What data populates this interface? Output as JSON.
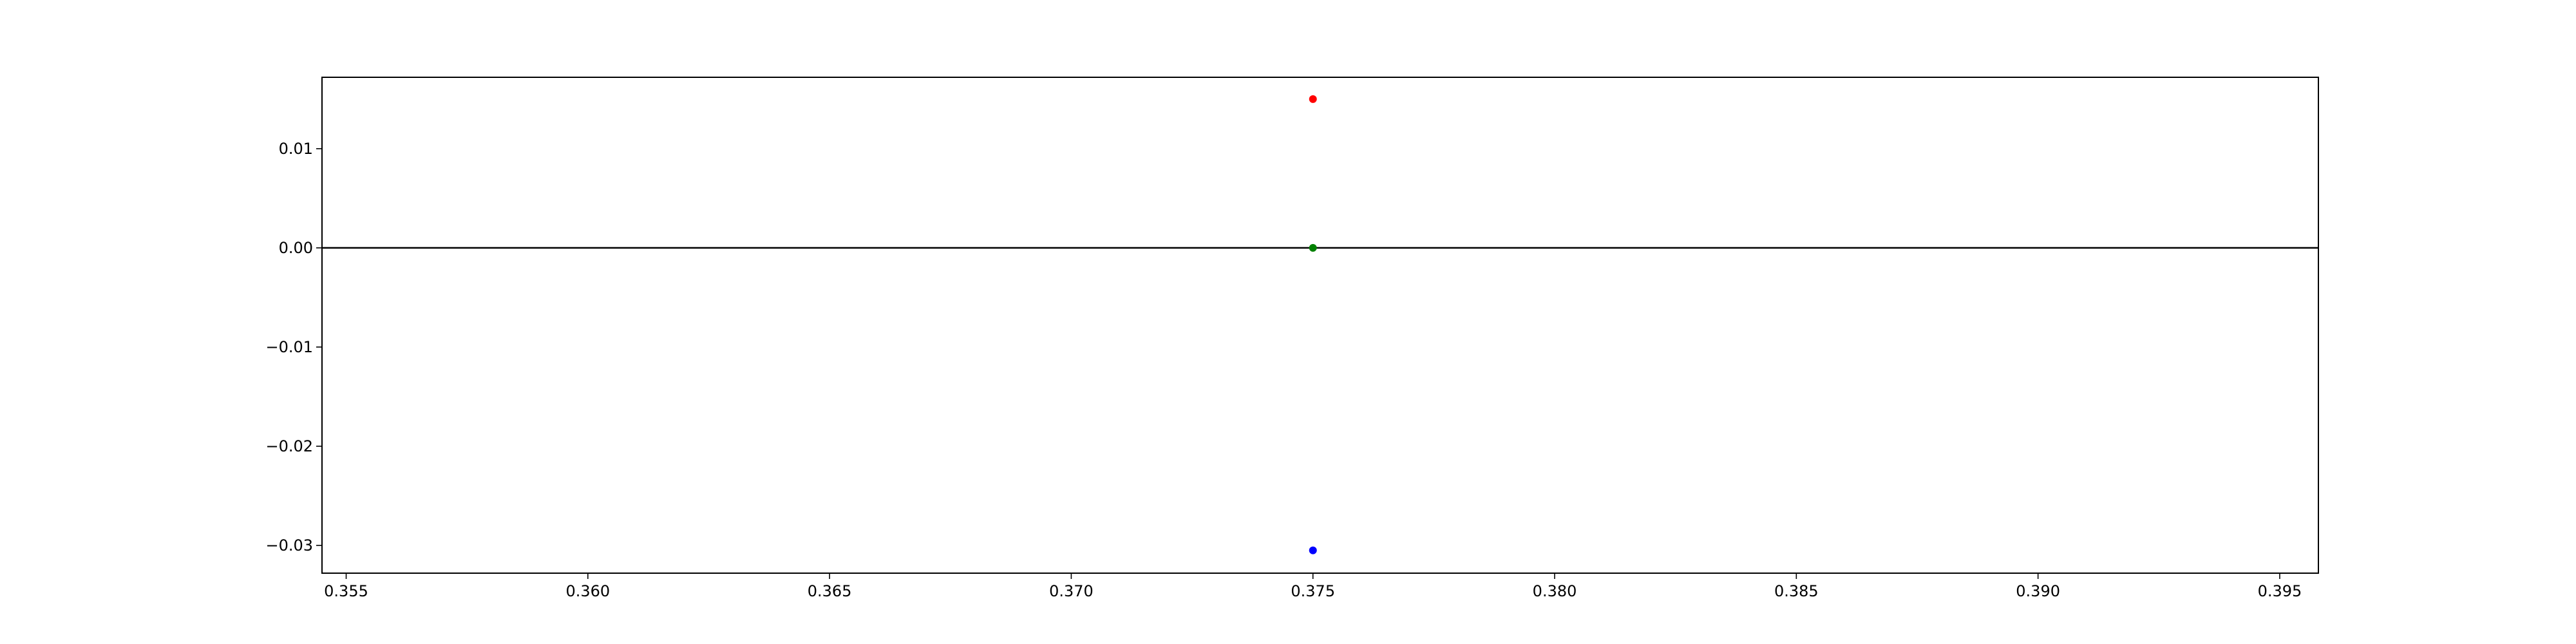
{
  "chart_data": {
    "type": "scatter",
    "title": "",
    "xlabel": "",
    "ylabel": "",
    "xlim": [
      0.3545,
      0.3958
    ],
    "ylim": [
      -0.0328,
      0.0172
    ],
    "xticks": [
      0.355,
      0.36,
      0.365,
      0.37,
      0.375,
      0.38,
      0.385,
      0.39,
      0.395
    ],
    "xtick_labels": [
      "0.355",
      "0.360",
      "0.365",
      "0.370",
      "0.375",
      "0.380",
      "0.385",
      "0.390",
      "0.395"
    ],
    "yticks": [
      0.01,
      0.0,
      -0.01,
      -0.02,
      -0.03
    ],
    "ytick_labels": [
      "0.01",
      "0.00",
      "−0.01",
      "−0.02",
      "−0.03"
    ],
    "grid": false,
    "hline": {
      "y": 0.0,
      "color": "#000000"
    },
    "points": [
      {
        "x": 0.375,
        "y": 0.015,
        "color": "#ff0000"
      },
      {
        "x": 0.375,
        "y": 0.0,
        "color": "#008000"
      },
      {
        "x": 0.375,
        "y": -0.0305,
        "color": "#0000ff"
      }
    ]
  }
}
